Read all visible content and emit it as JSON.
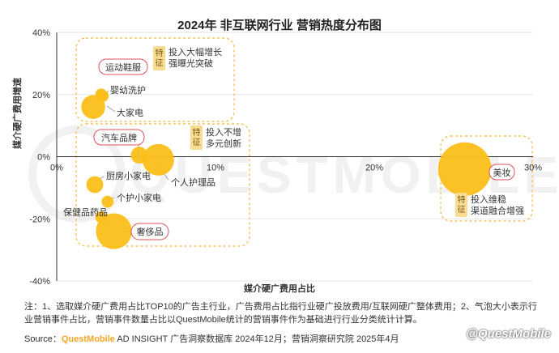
{
  "chart_data": {
    "type": "scatter",
    "title": "2024年 非互联网行业 营销热度分布图",
    "xlabel": "媒介硬广费用占比",
    "ylabel": "媒介硬广费用增速",
    "xlim": [
      0,
      30
    ],
    "ylim": [
      -40,
      40
    ],
    "x_ticks": [
      0,
      10,
      20,
      30
    ],
    "x_tick_labels": [
      "0%",
      "10%",
      "20%",
      "30%"
    ],
    "y_ticks": [
      40,
      20,
      0,
      -20,
      -40
    ],
    "y_tick_labels": [
      "40%",
      "20%",
      "0%",
      "-20%",
      "-40%"
    ],
    "grid": "horizontal",
    "bubble_color": "#fbbf1a",
    "highlight_color": "#e0505a",
    "points": [
      {
        "name": "运动鞋服",
        "x": 2.8,
        "y": 20.0,
        "size": 1
      },
      {
        "name": "婴幼洗护",
        "x": 2.9,
        "y": 19.5,
        "size": 1
      },
      {
        "name": "大家电",
        "x": 2.3,
        "y": 16.0,
        "size": 4
      },
      {
        "name": "汽车品牌",
        "x": 5.2,
        "y": 0.5,
        "size": 2
      },
      {
        "name": "个人护理品",
        "x": 6.4,
        "y": -1.0,
        "size": 7
      },
      {
        "name": "厨房小家电",
        "x": 2.4,
        "y": -9.0,
        "size": 2
      },
      {
        "name": "个护小家电",
        "x": 3.2,
        "y": -14.5,
        "size": 1
      },
      {
        "name": "保健品药品",
        "x": 2.8,
        "y": -19.5,
        "size": 1
      },
      {
        "name": "奢侈品",
        "x": 3.6,
        "y": -24.0,
        "size": 9
      },
      {
        "name": "美妆",
        "x": 25.7,
        "y": -4.0,
        "size": 20
      }
    ]
  },
  "tag_chars": [
    "特",
    "征"
  ],
  "groups": [
    {
      "line1": "投入大幅增长",
      "line2": "强曝光突破"
    },
    {
      "line1": "投入不增",
      "line2": "多元创新"
    },
    {
      "line1": "投入维稳",
      "line2": "渠道融合增强"
    }
  ],
  "watermark": "QUESTMOBILE",
  "footnote": "注：1、选取媒介硬广费用占比TOP10的广告主行业，广告费用占比指行业硬广投放费用/互联网硬广整体费用；2、气泡大小表示行业营销事件占比，营销事件数量占比以QuestMobile统计的营销事件作为基础进行行业分类统计计算。",
  "source": {
    "label": "Source：",
    "brand": "QuestMobile",
    "text": " AD INSIGHT 广告洞察数据库 2024年12月；营销洞察研究院 2025年4月"
  },
  "signature": "@QuestMobile"
}
